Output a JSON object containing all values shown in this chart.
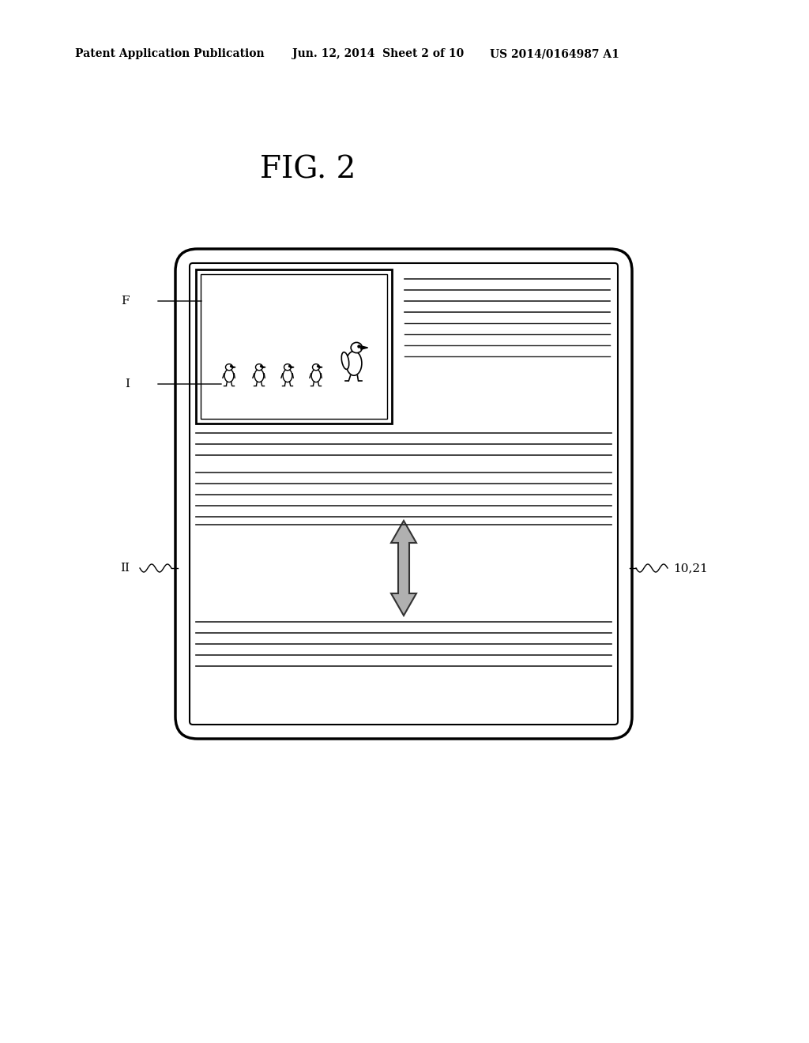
{
  "title": "FIG. 2",
  "header_left": "Patent Application Publication",
  "header_mid": "Jun. 12, 2014  Sheet 2 of 10",
  "header_right": "US 2014/0164987 A1",
  "bg_color": "#ffffff",
  "device_color": "#000000",
  "line_color": "#000000",
  "arrow_color": "#aaaaaa",
  "label_F": "F",
  "label_I": "I",
  "label_II": "II",
  "label_ref": "10,21"
}
